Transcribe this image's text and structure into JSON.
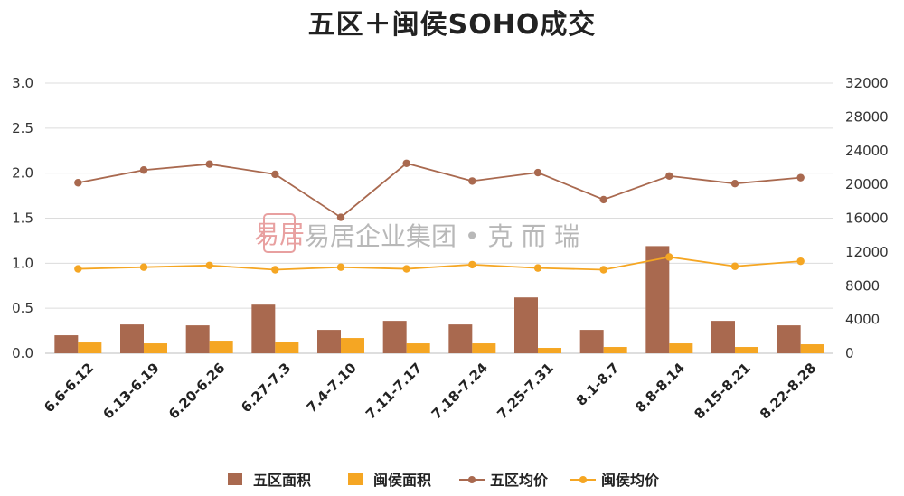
{
  "chart_data": {
    "type": "bar",
    "title": "五区＋闽侯SOHO成交",
    "categories": [
      "6.6-6.12",
      "6.13-6.19",
      "6.20-6.26",
      "6.27-7.3",
      "7.4-7.10",
      "7.11-7.17",
      "7.18-7.24",
      "7.25-7.31",
      "8.1-8.7",
      "8.8-8.14",
      "8.15-8.21",
      "8.22-8.28"
    ],
    "left_axis": {
      "min": 0,
      "max": 3.0,
      "ticks": [
        "0.0",
        "0.5",
        "1.0",
        "1.5",
        "2.0",
        "2.5",
        "3.0"
      ]
    },
    "right_axis": {
      "min": 0,
      "max": 32000,
      "ticks": [
        "0",
        "4000",
        "8000",
        "12000",
        "16000",
        "20000",
        "24000",
        "28000",
        "32000"
      ]
    },
    "grid": true,
    "legend_position": "bottom",
    "series": [
      {
        "name": "五区面积",
        "kind": "bar",
        "axis": "left",
        "color": "#a9694f",
        "values": [
          0.2,
          0.32,
          0.31,
          0.54,
          0.26,
          0.36,
          0.32,
          0.62,
          0.26,
          1.19,
          0.36,
          0.31
        ]
      },
      {
        "name": "闽侯面积",
        "kind": "bar",
        "axis": "left",
        "color": "#f5a623",
        "values": [
          0.12,
          0.11,
          0.14,
          0.13,
          0.17,
          0.11,
          0.11,
          0.06,
          0.07,
          0.11,
          0.07,
          0.1
        ]
      },
      {
        "name": "五区均价",
        "kind": "line",
        "axis": "right",
        "color": "#a9694f",
        "values": [
          20200,
          21700,
          22400,
          21200,
          16100,
          22500,
          20400,
          21400,
          18200,
          21000,
          20100,
          20800
        ]
      },
      {
        "name": "闽侯均价",
        "kind": "line",
        "axis": "right",
        "color": "#f5a623",
        "values": [
          10000,
          10200,
          10400,
          9900,
          10200,
          10000,
          10500,
          10100,
          9900,
          11400,
          10300,
          10900
        ]
      }
    ]
  },
  "watermark": {
    "seal": "易居",
    "text": "易居企业集团 • 克 而 瑞"
  }
}
